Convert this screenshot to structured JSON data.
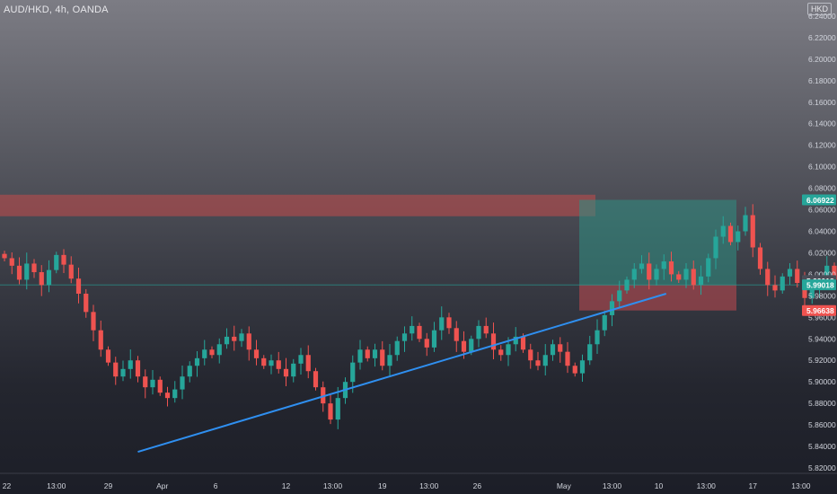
{
  "header": {
    "symbol_title": "AUD/HKD, 4h, OANDA",
    "currency_badge": "HKD"
  },
  "colors": {
    "up": "#26a69a",
    "down": "#ef5350",
    "trendline": "#2f8ff0",
    "resistance_zone": "#c44a4a",
    "target_zone": "#2f8f84",
    "stop_zone": "#b5484f",
    "axis_text": "#d1d4dc"
  },
  "chart_data": {
    "type": "candlestick",
    "symbol": "AUD/HKD",
    "timeframe": "4h",
    "broker": "OANDA",
    "ylim": [
      5.815,
      6.255
    ],
    "y_ticks": [
      "6.24000",
      "6.22000",
      "6.20000",
      "6.18000",
      "6.16000",
      "6.14000",
      "6.12000",
      "6.10000",
      "6.08000",
      "6.06000",
      "6.04000",
      "6.02000",
      "6.00000",
      "5.98000",
      "5.96000",
      "5.94000",
      "5.92000",
      "5.90000",
      "5.88000",
      "5.86000",
      "5.84000",
      "5.82000"
    ],
    "x_ticks": [
      {
        "label": "22",
        "t": 0.3
      },
      {
        "label": "13:00",
        "t": 7.0
      },
      {
        "label": "29",
        "t": 14.0
      },
      {
        "label": "Apr",
        "t": 21.3
      },
      {
        "label": "6",
        "t": 28.5
      },
      {
        "label": "12",
        "t": 38.0
      },
      {
        "label": "13:00",
        "t": 44.3
      },
      {
        "label": "19",
        "t": 51.0
      },
      {
        "label": "13:00",
        "t": 57.3
      },
      {
        "label": "26",
        "t": 63.8
      },
      {
        "label": "May",
        "t": 75.5
      },
      {
        "label": "13:00",
        "t": 82.0
      },
      {
        "label": "10",
        "t": 88.3
      },
      {
        "label": "13:00",
        "t": 94.7
      },
      {
        "label": "17",
        "t": 101.0
      },
      {
        "label": "13:00",
        "t": 107.5
      }
    ],
    "closes": [
      6.015,
      6.008,
      5.995,
      6.01,
      6.002,
      5.99,
      6.004,
      6.018,
      6.009,
      5.996,
      5.982,
      5.965,
      5.948,
      5.93,
      5.918,
      5.905,
      5.912,
      5.92,
      5.905,
      5.895,
      5.902,
      5.89,
      5.885,
      5.893,
      5.905,
      5.915,
      5.922,
      5.93,
      5.925,
      5.935,
      5.942,
      5.938,
      5.945,
      5.93,
      5.922,
      5.915,
      5.92,
      5.912,
      5.905,
      5.917,
      5.925,
      5.91,
      5.895,
      5.88,
      5.865,
      5.885,
      5.9,
      5.918,
      5.93,
      5.922,
      5.93,
      5.915,
      5.925,
      5.938,
      5.945,
      5.952,
      5.94,
      5.932,
      5.948,
      5.96,
      5.95,
      5.938,
      5.928,
      5.94,
      5.952,
      5.945,
      5.93,
      5.925,
      5.935,
      5.942,
      5.93,
      5.92,
      5.915,
      5.925,
      5.935,
      5.928,
      5.915,
      5.908,
      5.92,
      5.935,
      5.948,
      5.962,
      5.975,
      5.985,
      5.995,
      6.005,
      6.01,
      5.995,
      6.005,
      6.012,
      6.0,
      5.995,
      6.005,
      5.99,
      5.998,
      6.015,
      6.035,
      6.045,
      6.03,
      6.04,
      6.055,
      6.025,
      6.005,
      5.99,
      5.985,
      5.998,
      6.005,
      5.992,
      5.978,
      5.988,
      5.995,
      6.008,
      5.995,
      5.985,
      5.99,
      6.005,
      6.02,
      6.035,
      6.05,
      6.06,
      6.045,
      6.03,
      6.04,
      6.025,
      6.015,
      6.005,
      5.995,
      6.01,
      6.03,
      6.055,
      6.065,
      6.05,
      6.04,
      6.045,
      6.04,
      6.03,
      6.02,
      6.038,
      6.032,
      6.02,
      6.01,
      6.0,
      5.98
    ],
    "resistance_zone": {
      "top": 6.074,
      "bottom": 6.054
    },
    "trendline": {
      "from": {
        "t": 18.0,
        "price": 5.835
      },
      "to": {
        "t": 89.3,
        "price": 5.982
      }
    },
    "position": {
      "entry": 5.99018,
      "take_profit": 6.06922,
      "stop_loss": 5.96638,
      "entry_label": "5.99018",
      "take_profit_label": "6.06922",
      "stop_loss_label": "5.96638"
    }
  }
}
